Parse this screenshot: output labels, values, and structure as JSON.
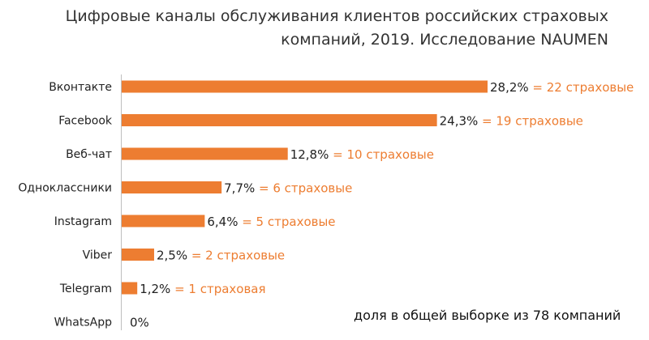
{
  "chart_data": {
    "type": "bar",
    "orientation": "horizontal",
    "title_lines": [
      "Цифровые каналы обслуживания клиентов российских страховых",
      "компаний, 2019. Исследование NAUMEN"
    ],
    "categories": [
      "Вконтакте",
      "Facebook",
      "Веб-чат",
      "Одноклассники",
      "Instagram",
      "Viber",
      "Telegram",
      "WhatsApp"
    ],
    "values": [
      28.2,
      24.3,
      12.8,
      7.7,
      6.4,
      2.5,
      1.2,
      0
    ],
    "value_labels": [
      "28,2%",
      "24,3%",
      "12,8%",
      "7,7%",
      "6,4%",
      "2,5%",
      "1,2%",
      "0%"
    ],
    "count_labels": [
      "= 22 страховые",
      "= 19 страховые",
      "= 10 страховые",
      "= 6 страховые",
      "= 5 страховые",
      "= 2 страховые",
      "= 1 страховая",
      ""
    ],
    "footnote": "доля в общей выборке из 78 компаний",
    "xlim": [
      0,
      28.2
    ],
    "grid": false,
    "legend": "none",
    "colors": {
      "bar": "#ED7D31",
      "count_text": "#ED7D31",
      "label_text": "#222222",
      "axis": "#bfbfbf"
    }
  }
}
